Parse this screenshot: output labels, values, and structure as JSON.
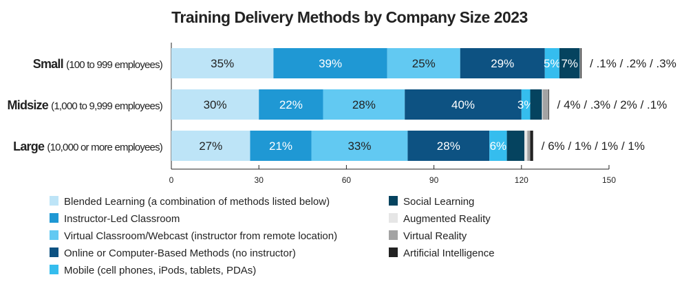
{
  "chart_data": {
    "type": "bar",
    "orientation": "horizontal-stacked",
    "title": "Training Delivery Methods by Company Size 2023",
    "xlim": [
      0,
      150
    ],
    "xticks": [
      0,
      30,
      60,
      90,
      120,
      150
    ],
    "categories": [
      {
        "name": "Small",
        "detail": "(100 to 999 employees)",
        "tail_label": "/ .1% / .2% / .3%"
      },
      {
        "name": "Midsize",
        "detail": "(1,000 to 9,999 employees)",
        "tail_label": "/ 4% / .3% / 2% / .1%"
      },
      {
        "name": "Large",
        "detail": "(10,000 or more employees)",
        "tail_label": "/ 6%  / 1% / 1% / 1%"
      }
    ],
    "series": [
      {
        "name": "Blended Learning (a combination of methods listed below)",
        "color": "#bde4f7",
        "label_color": "#222222",
        "values": [
          35,
          30,
          27
        ]
      },
      {
        "name": "Instructor-Led Classroom",
        "color": "#1f98d4",
        "label_color": "#ffffff",
        "values": [
          39,
          22,
          21
        ]
      },
      {
        "name": "Virtual Classroom/Webcast (instructor from remote location)",
        "color": "#62c9f2",
        "label_color": "#222222",
        "values": [
          25,
          28,
          33
        ]
      },
      {
        "name": "Online or Computer-Based Methods (no instructor)",
        "color": "#0d5282",
        "label_color": "#ffffff",
        "values": [
          29,
          40,
          28
        ]
      },
      {
        "name": "Mobile (cell phones, iPods, tablets, PDAs)",
        "color": "#35bdee",
        "label_color": "#ffffff",
        "values": [
          5,
          3,
          6
        ]
      },
      {
        "name": "Social Learning",
        "color": "#05435f",
        "label_color": "#ffffff",
        "values": [
          7,
          4,
          6
        ]
      },
      {
        "name": "Augmented Reality",
        "color": "#e6e6e6",
        "label_color": "#222222",
        "values": [
          0.1,
          0.3,
          1
        ]
      },
      {
        "name": "Virtual Reality",
        "color": "#a3a3a3",
        "label_color": "#222222",
        "values": [
          0.2,
          2,
          1
        ]
      },
      {
        "name": "Artificial Intelligence",
        "color": "#222222",
        "label_color": "#ffffff",
        "values": [
          0.3,
          0.1,
          1
        ]
      }
    ],
    "inline_labels": [
      [
        "35%",
        "39%",
        "25%",
        "29%",
        "5%",
        "7%",
        "",
        "",
        ""
      ],
      [
        "30%",
        "22%",
        "28%",
        "40%",
        "3%",
        "",
        "",
        "",
        ""
      ],
      [
        "27%",
        "21%",
        "33%",
        "28%",
        "6%",
        "",
        "",
        "",
        ""
      ]
    ],
    "legend_placement": "bottom"
  }
}
